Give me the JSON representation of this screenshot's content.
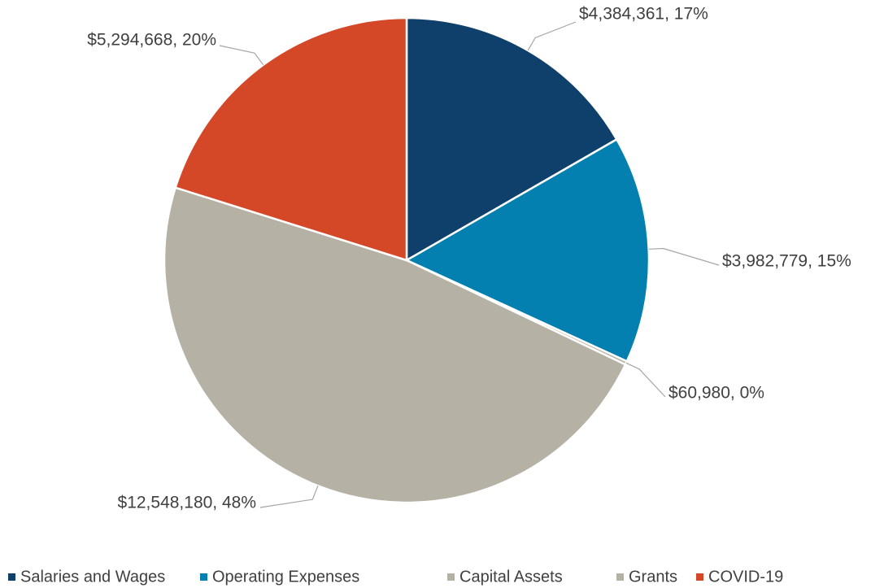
{
  "chart_data": {
    "type": "pie",
    "categories": [
      "Salaries and Wages",
      "Operating Expenses",
      "Capital Assets",
      "Grants",
      "COVID-19"
    ],
    "values": [
      4384361,
      3982779,
      60980,
      12548180,
      5294668
    ],
    "value_labels": [
      "$4,384,361, 17%",
      "$3,982,779, 15%",
      "$60,980, 0%",
      "$12,548,180, 48%",
      "$5,294,668, 20%"
    ],
    "colors": [
      "#0f3f6b",
      "#0380b0",
      "#b5b1a4",
      "#b5b1a4",
      "#d44727"
    ],
    "legend": "bottom"
  }
}
